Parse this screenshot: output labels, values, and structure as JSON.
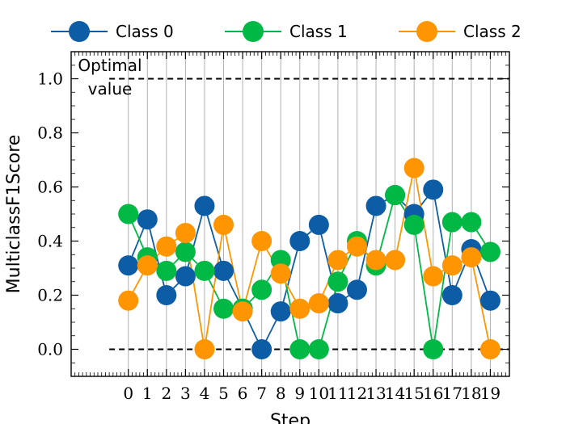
{
  "chart_data": {
    "type": "line",
    "title": "",
    "xlabel": "Step",
    "ylabel": "MulticlassF1Score",
    "x": [
      0,
      1,
      2,
      3,
      4,
      5,
      6,
      7,
      8,
      9,
      10,
      11,
      12,
      13,
      14,
      15,
      16,
      17,
      18,
      19
    ],
    "xlim": [
      -3,
      20
    ],
    "ylim": [
      -0.1,
      1.1
    ],
    "yticks": [
      0.0,
      0.2,
      0.4,
      0.6,
      0.8,
      1.0
    ],
    "ytick_labels": [
      "0.0",
      "0.2",
      "0.4",
      "0.6",
      "0.8",
      "1.0"
    ],
    "grid": "x-only",
    "legend_placement": "top, outside",
    "reference_lines": [
      {
        "y": 1.0,
        "style": "dashed",
        "color": "#000000"
      },
      {
        "y": 0.0,
        "style": "dashed",
        "color": "#000000"
      }
    ],
    "annotation": {
      "text_line1": "Optimal",
      "text_line2": "value",
      "y": 1.0
    },
    "series": [
      {
        "name": "Class 0",
        "color": "#0C5DA5",
        "values": [
          0.31,
          0.48,
          0.2,
          0.27,
          0.53,
          0.29,
          0.15,
          0.0,
          0.14,
          0.4,
          0.46,
          0.17,
          0.22,
          0.53,
          0.57,
          0.5,
          0.59,
          0.2,
          0.37,
          0.18
        ]
      },
      {
        "name": "Class 1",
        "color": "#00B945",
        "values": [
          0.5,
          0.34,
          0.29,
          0.36,
          0.29,
          0.15,
          0.15,
          0.22,
          0.33,
          0.0,
          0.0,
          0.25,
          0.4,
          0.31,
          0.57,
          0.46,
          0.0,
          0.47,
          0.47,
          0.36
        ]
      },
      {
        "name": "Class 2",
        "color": "#FF9500",
        "values": [
          0.18,
          0.31,
          0.38,
          0.43,
          0.0,
          0.46,
          0.14,
          0.4,
          0.28,
          0.15,
          0.17,
          0.33,
          0.38,
          0.33,
          0.33,
          0.67,
          0.27,
          0.31,
          0.34,
          0.0
        ]
      }
    ]
  }
}
